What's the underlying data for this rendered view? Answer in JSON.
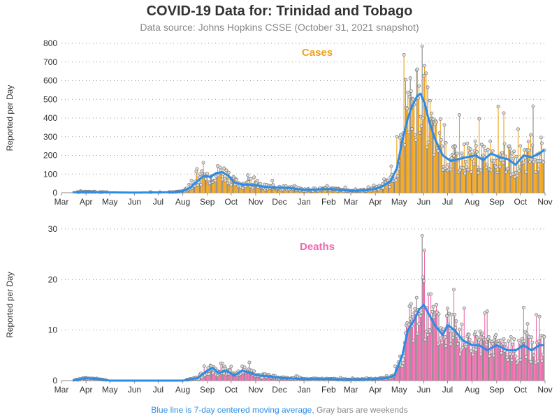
{
  "title": "COVID-19 Data for: Trinidad and Tobago",
  "subtitle": "Data source: Johns Hopkins CSSE (October 31, 2021 snapshot)",
  "footnote": {
    "moving_average": "Blue line is 7-day centered moving average,",
    "weekends": "Gray bars are weekends"
  },
  "colors": {
    "cases": "#f0a21a",
    "deaths": "#ee69ad",
    "moving_average": "#2b8ce8",
    "weekend": "#888888"
  },
  "chart_data": [
    {
      "type": "bar",
      "title": "Cases",
      "ylabel": "Reported per Day",
      "ylim": [
        0,
        800
      ],
      "yticks": [
        0,
        100,
        200,
        300,
        400,
        500,
        600,
        700,
        800
      ],
      "xlim": [
        "2020-03-01",
        "2021-11-01"
      ],
      "xticks": [
        "Mar",
        "Apr",
        "May",
        "Jun",
        "Jul",
        "Aug",
        "Sep",
        "Oct",
        "Nov",
        "Dec",
        "Jan",
        "Feb",
        "Mar",
        "Apr",
        "May",
        "Jun",
        "Jul",
        "Aug",
        "Sep",
        "Oct",
        "Nov"
      ],
      "grid": "horizontal dotted",
      "series": [
        {
          "name": "Blue line is 7-day centered moving average",
          "kind": "7-day centered moving average",
          "dates": [
            "2020-03-15",
            "2020-04-01",
            "2020-04-15",
            "2020-05-01",
            "2020-06-01",
            "2020-07-01",
            "2020-07-20",
            "2020-08-01",
            "2020-08-10",
            "2020-08-20",
            "2020-08-28",
            "2020-09-05",
            "2020-09-12",
            "2020-09-20",
            "2020-09-28",
            "2020-10-05",
            "2020-10-15",
            "2020-11-01",
            "2020-11-15",
            "2020-12-01",
            "2020-12-15",
            "2021-01-01",
            "2021-01-20",
            "2021-02-01",
            "2021-02-20",
            "2021-03-01",
            "2021-03-15",
            "2021-04-01",
            "2021-04-10",
            "2021-04-20",
            "2021-04-28",
            "2021-05-05",
            "2021-05-12",
            "2021-05-18",
            "2021-05-24",
            "2021-05-28",
            "2021-06-02",
            "2021-06-08",
            "2021-06-15",
            "2021-06-25",
            "2021-07-05",
            "2021-07-15",
            "2021-07-25",
            "2021-08-05",
            "2021-08-15",
            "2021-08-25",
            "2021-09-05",
            "2021-09-15",
            "2021-09-25",
            "2021-10-05",
            "2021-10-15",
            "2021-10-25",
            "2021-10-31"
          ],
          "values": [
            2,
            5,
            3,
            2,
            1,
            2,
            3,
            8,
            25,
            65,
            90,
            85,
            105,
            110,
            90,
            55,
            45,
            40,
            30,
            28,
            25,
            15,
            18,
            20,
            14,
            10,
            12,
            20,
            35,
            60,
            130,
            280,
            400,
            470,
            520,
            530,
            480,
            380,
            290,
            200,
            170,
            180,
            190,
            200,
            175,
            210,
            190,
            180,
            150,
            200,
            190,
            210,
            230
          ]
        }
      ],
      "points_note": "Daily values are shown as thin bars with circle markers; weekends drawn in gray."
    },
    {
      "type": "bar",
      "title": "Deaths",
      "ylabel": "Reported per Day",
      "ylim": [
        0,
        30
      ],
      "yticks": [
        0,
        10,
        20,
        30
      ],
      "xlim": [
        "2020-03-01",
        "2021-11-01"
      ],
      "xticks": [
        "Mar",
        "Apr",
        "May",
        "Jun",
        "Jul",
        "Aug",
        "Sep",
        "Oct",
        "Nov",
        "Dec",
        "Jan",
        "Feb",
        "Mar",
        "Apr",
        "May",
        "Jun",
        "Jul",
        "Aug",
        "Sep",
        "Oct",
        "Nov"
      ],
      "grid": "horizontal dotted",
      "series": [
        {
          "name": "Blue line is 7-day centered moving average",
          "kind": "7-day centered moving average",
          "dates": [
            "2020-03-15",
            "2020-04-01",
            "2020-04-15",
            "2020-05-01",
            "2020-06-01",
            "2020-07-01",
            "2020-08-01",
            "2020-08-20",
            "2020-09-01",
            "2020-09-08",
            "2020-09-15",
            "2020-09-25",
            "2020-10-05",
            "2020-10-15",
            "2020-10-25",
            "2020-11-05",
            "2020-11-20",
            "2020-12-05",
            "2021-01-01",
            "2021-02-01",
            "2021-03-01",
            "2021-04-01",
            "2021-04-15",
            "2021-04-25",
            "2021-05-05",
            "2021-05-12",
            "2021-05-20",
            "2021-05-26",
            "2021-06-01",
            "2021-06-08",
            "2021-06-15",
            "2021-06-25",
            "2021-07-01",
            "2021-07-10",
            "2021-07-20",
            "2021-08-01",
            "2021-08-10",
            "2021-08-20",
            "2021-09-01",
            "2021-09-15",
            "2021-09-25",
            "2021-10-05",
            "2021-10-15",
            "2021-10-25",
            "2021-10-31"
          ],
          "values": [
            0,
            0.5,
            0.3,
            0,
            0,
            0,
            0,
            0.5,
            2,
            2.5,
            1.5,
            2,
            1,
            2,
            1.5,
            1,
            0.8,
            0.5,
            0.3,
            0.3,
            0.2,
            0.3,
            0.5,
            1,
            5,
            10,
            12,
            14,
            15,
            13,
            11,
            9,
            11,
            10,
            8,
            7,
            7,
            6,
            7,
            6,
            6,
            7,
            6,
            7,
            7
          ]
        }
      ],
      "points_note": "Daily values are shown as thin bars with circle markers; weekends drawn in gray."
    }
  ]
}
